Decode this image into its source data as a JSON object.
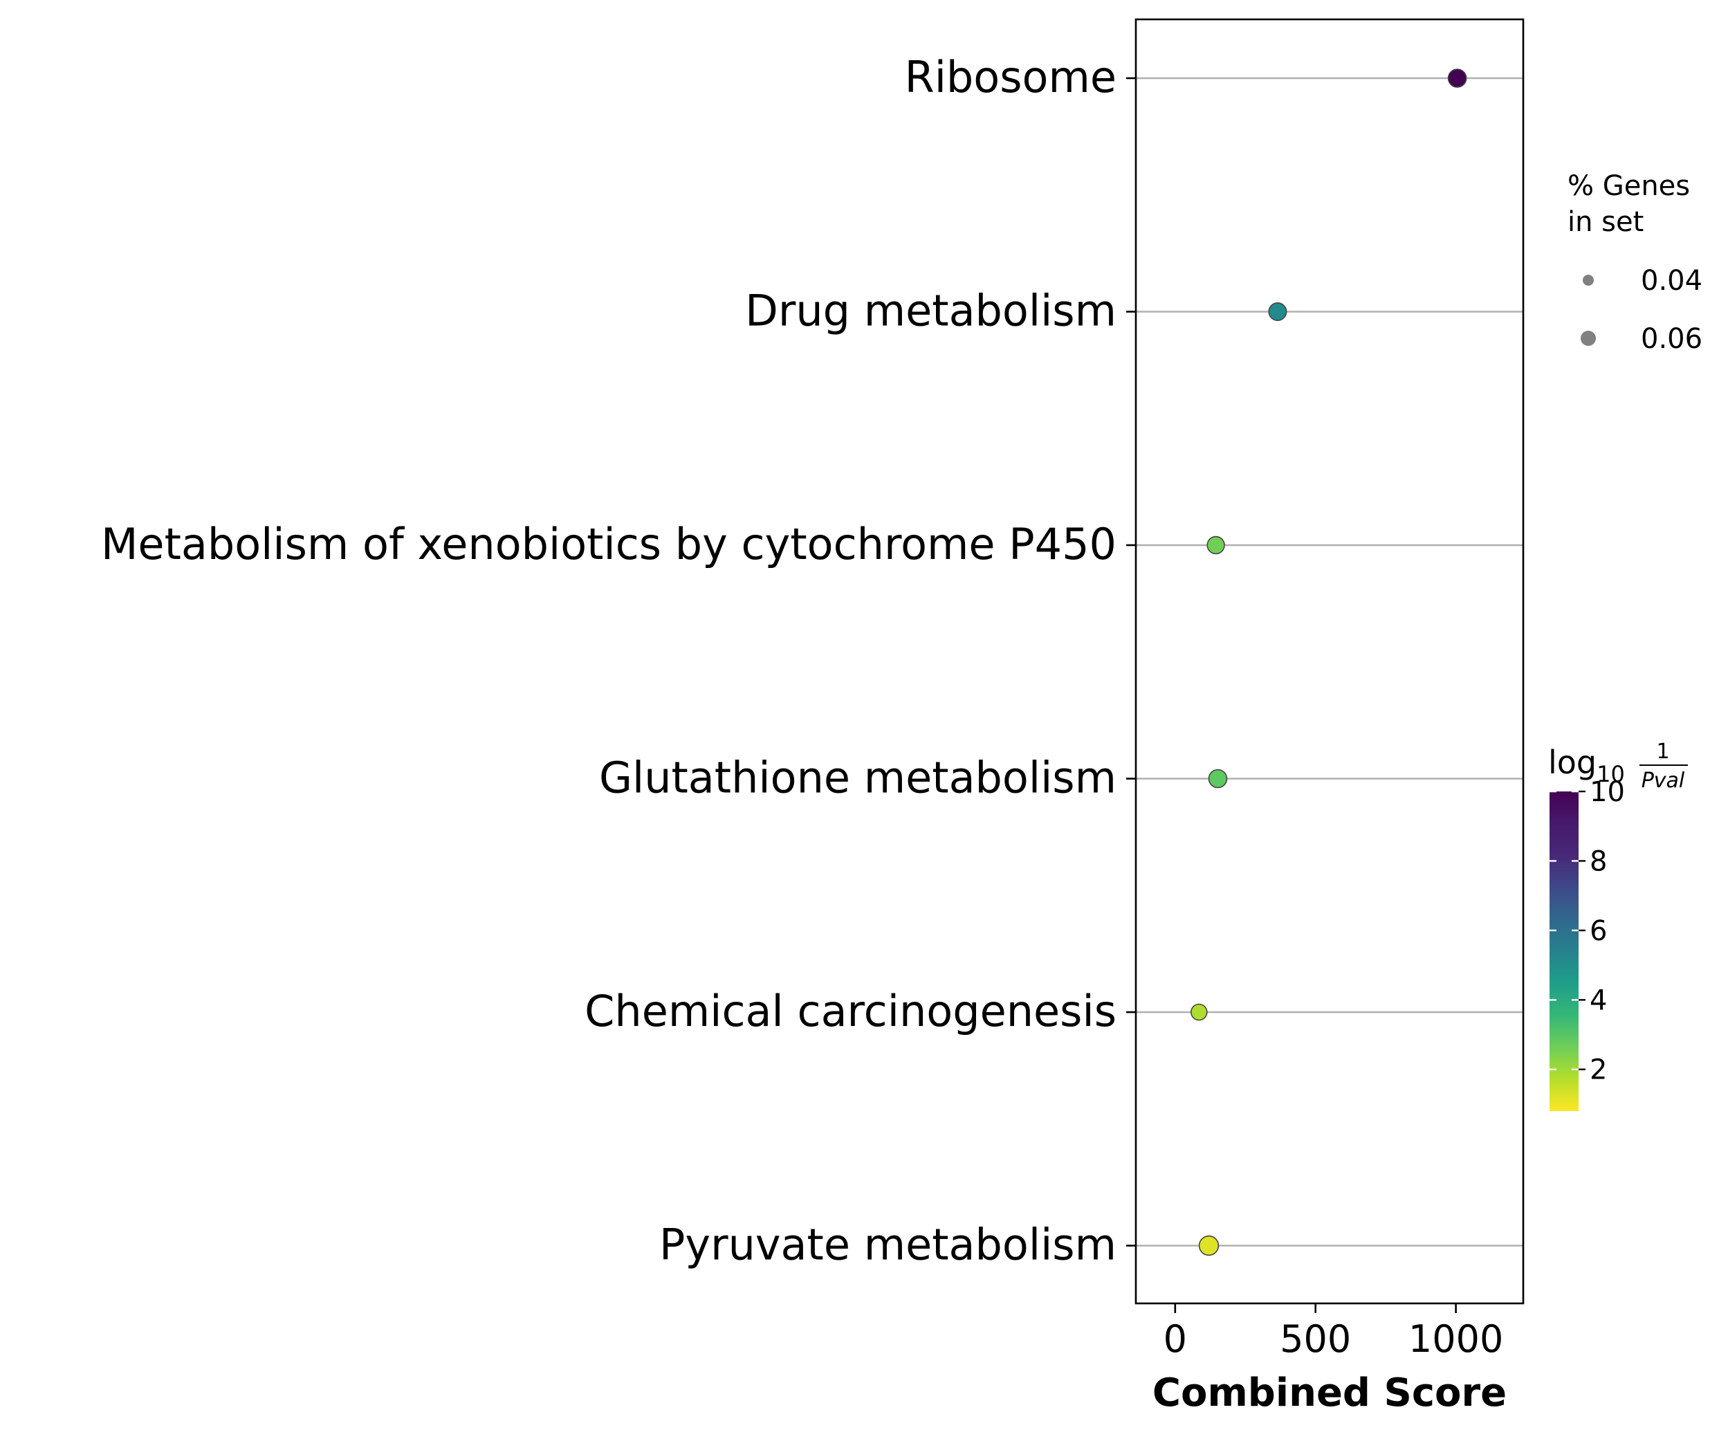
{
  "chart_data": {
    "type": "scatter",
    "xlabel": "Combined Score",
    "ylabel": "",
    "xlim": [
      -140,
      1240
    ],
    "x_ticks": [
      0,
      500,
      1000
    ],
    "categories": [
      "Ribosome",
      "Drug metabolism",
      "Metabolism of xenobiotics by cytochrome P450",
      "Glutathione metabolism",
      "Chemical carcinogenesis",
      "Pyruvate metabolism"
    ],
    "points": [
      {
        "term": "Ribosome",
        "combined_score": 1005,
        "neg_log10_pval": 10.0,
        "pct_genes_in_set": 0.06
      },
      {
        "term": "Drug metabolism",
        "combined_score": 365,
        "neg_log10_pval": 5.1,
        "pct_genes_in_set": 0.058
      },
      {
        "term": "Metabolism of xenobiotics by cytochrome P450",
        "combined_score": 145,
        "neg_log10_pval": 2.6,
        "pct_genes_in_set": 0.056
      },
      {
        "term": "Glutathione metabolism",
        "combined_score": 152,
        "neg_log10_pval": 2.9,
        "pct_genes_in_set": 0.06
      },
      {
        "term": "Chemical carcinogenesis",
        "combined_score": 85,
        "neg_log10_pval": 1.8,
        "pct_genes_in_set": 0.05
      },
      {
        "term": "Pyruvate metabolism",
        "combined_score": 120,
        "neg_log10_pval": 1.2,
        "pct_genes_in_set": 0.066
      }
    ],
    "grid": "horizontal",
    "size_legend": {
      "title_line1": "% Genes",
      "title_line2": "in set",
      "entries": [
        {
          "label": "0.04",
          "value": 0.04
        },
        {
          "label": "0.06",
          "value": 0.06
        }
      ]
    },
    "colorbar": {
      "colormap": "viridis",
      "title_log": "log",
      "title_sub": "10",
      "title_num": "1",
      "title_den": "Pval",
      "range": [
        0.8,
        10
      ],
      "ticks": [
        {
          "label": "2",
          "value": 2
        },
        {
          "label": "4",
          "value": 4
        },
        {
          "label": "6",
          "value": 6
        },
        {
          "label": "8",
          "value": 8
        },
        {
          "label": "10",
          "value": 10
        }
      ]
    }
  }
}
